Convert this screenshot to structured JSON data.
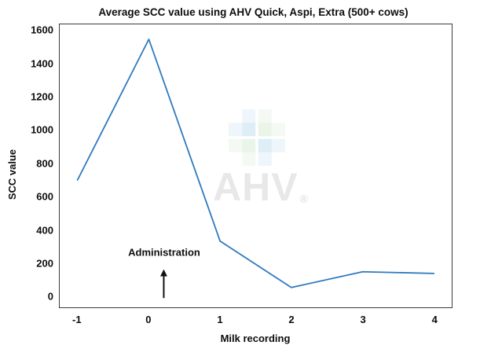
{
  "figure": {
    "title": "Average SCC value using AHV Quick, Aspi, Extra (500+ cows)"
  },
  "chart_data": {
    "type": "line",
    "title": "Average SCC value using AHV Quick, Aspi, Extra (500+ cows)",
    "xlabel": "Milk recording",
    "ylabel": "SCC value",
    "x": [
      -1,
      0,
      1,
      2,
      3,
      4
    ],
    "values": [
      700,
      1550,
      330,
      50,
      145,
      135
    ],
    "series_name": "Average SCC value",
    "xticks": [
      -1,
      0,
      1,
      2,
      3,
      4
    ],
    "yticks": [
      0,
      200,
      400,
      600,
      800,
      1000,
      1200,
      1400,
      1600
    ],
    "xlim": [
      -1.25,
      4.25
    ],
    "ylim": [
      -70,
      1640
    ],
    "grid": false,
    "legend": "none",
    "line_color": "#2e79be",
    "annotation": {
      "text": "Administration",
      "x": 0.21,
      "text_y": 270,
      "arrow_tip_y": 160,
      "arrow_base_y": -14
    }
  },
  "watermark": {
    "text": "AHV",
    "registered_mark": "®",
    "text_color": "#e8e8e8",
    "logo_blue": "#5aaad7",
    "logo_green": "#85c77a"
  }
}
